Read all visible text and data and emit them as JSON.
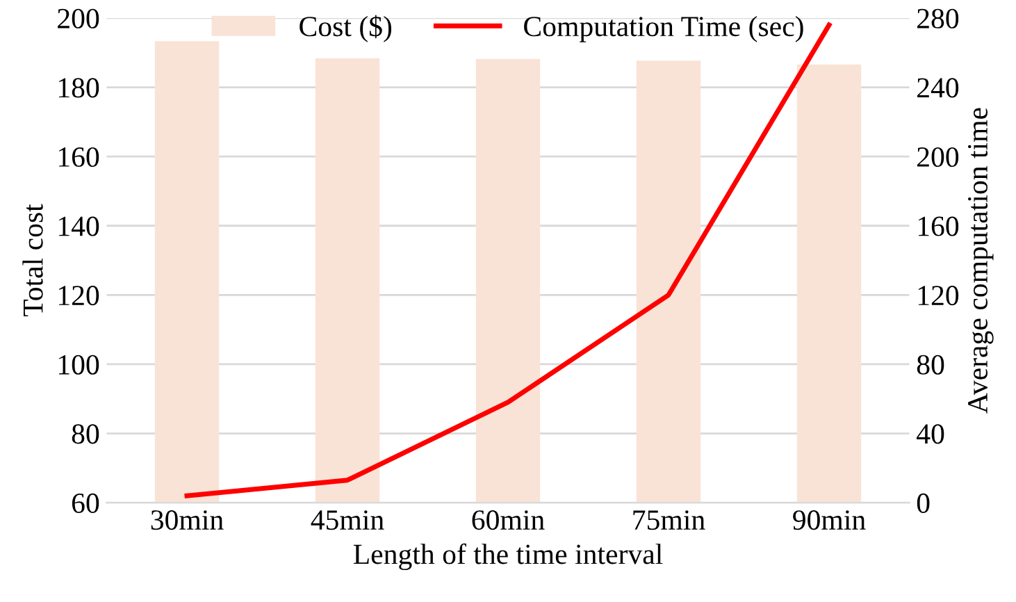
{
  "chart_data": {
    "type": "bar",
    "xlabel": "Length of the time interval",
    "ylabel": "Total cost",
    "y2label": "Average computation time",
    "categories": [
      "30min",
      "45min",
      "60min",
      "75min",
      "90min"
    ],
    "series": [
      {
        "name": "Cost ($)",
        "color": "#f9e3d6",
        "values": [
          193.3,
          188.4,
          188.2,
          187.7,
          186.6
        ]
      },
      {
        "name": "Computation Time (sec)",
        "type": "line",
        "axis": "y2",
        "color": "#ff0000",
        "values": [
          4,
          13,
          58,
          120,
          276
        ]
      }
    ],
    "ylim": [
      60,
      200
    ],
    "yticks": [
      60,
      80,
      100,
      120,
      140,
      160,
      180,
      200
    ],
    "y2lim": [
      0,
      280
    ],
    "y2ticks": [
      0,
      40,
      80,
      120,
      160,
      200,
      240,
      280
    ],
    "grid": "y",
    "legend": "top"
  }
}
